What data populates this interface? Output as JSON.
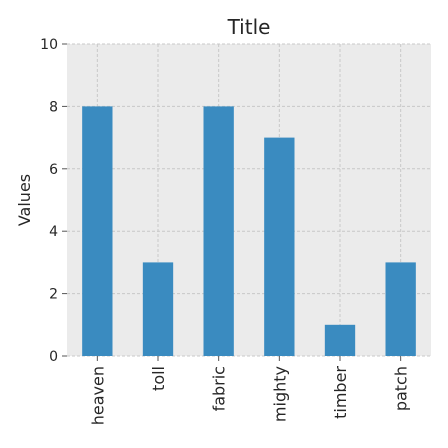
{
  "chart_data": {
    "type": "bar",
    "title": "Title",
    "xlabel": "",
    "ylabel": "Values",
    "categories": [
      "heaven",
      "toll",
      "fabric",
      "mighty",
      "timber",
      "patch"
    ],
    "values": [
      8,
      3,
      8,
      7,
      1,
      3
    ],
    "ylim": [
      0,
      10
    ],
    "yticks": [
      0,
      2,
      4,
      6,
      8,
      10
    ],
    "grid": true,
    "colors": {
      "bar": "#3a8bc0",
      "plot_background": "#ebebeb",
      "grid": "#c8c8c8",
      "text": "#262626"
    }
  }
}
